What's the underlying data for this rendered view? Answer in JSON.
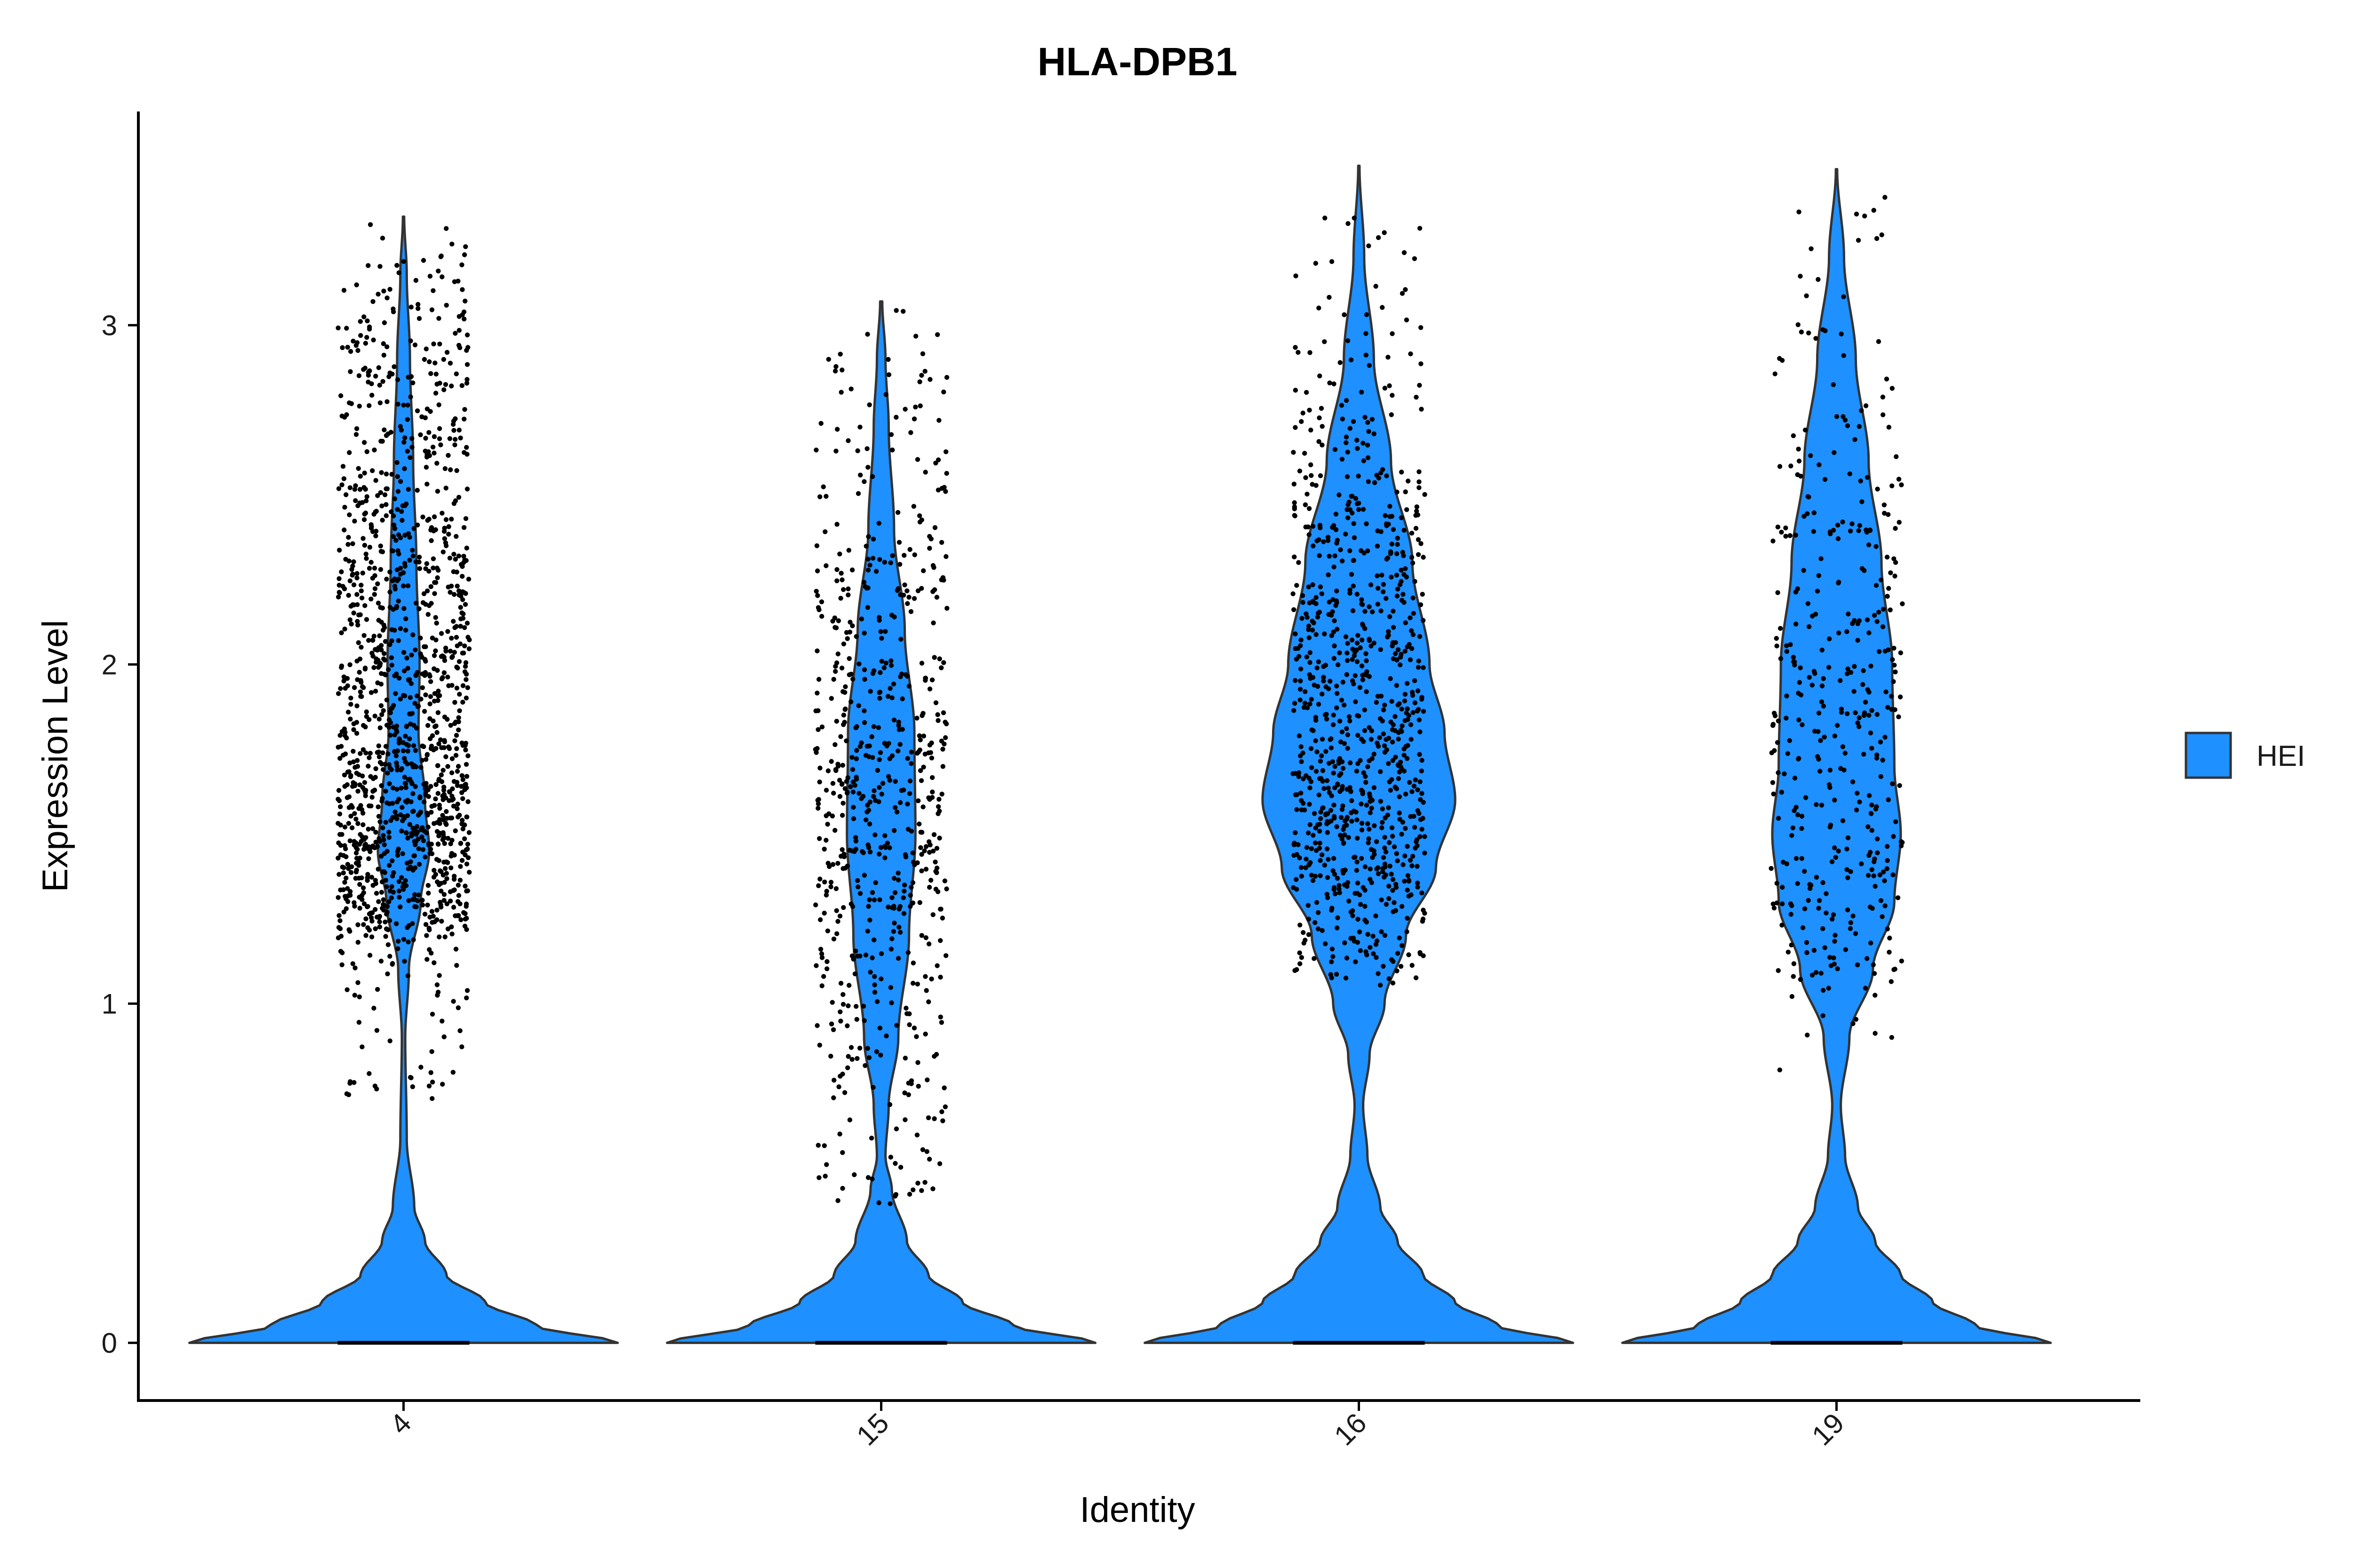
{
  "chart_data": {
    "type": "violin",
    "title": "HLA-DPB1",
    "xlabel": "Identity",
    "ylabel": "Expression Level",
    "categories": [
      "4",
      "15",
      "16",
      "19"
    ],
    "ylim": [
      -0.17,
      3.63
    ],
    "yticks": [
      "0",
      "1",
      "2",
      "3"
    ],
    "ytick_values": [
      0,
      1,
      2,
      3
    ],
    "x_tick_rotation": -45,
    "legend": {
      "position": "right",
      "entries": [
        {
          "name": "HEI",
          "color": "#1E90FF"
        }
      ]
    },
    "fill_color": "#1E90FF",
    "outline_color": "#333333",
    "point_color": "#000000",
    "grid": false,
    "series": [
      {
        "category": "4",
        "max": 3.32,
        "nonzero_min": 0.72,
        "point_count": 1400,
        "zero_fraction_visual": "large",
        "density_profile": [
          [
            0,
            1.0
          ],
          [
            0.05,
            0.62
          ],
          [
            0.12,
            0.38
          ],
          [
            0.2,
            0.2
          ],
          [
            0.3,
            0.1
          ],
          [
            0.4,
            0.05
          ],
          [
            0.6,
            0.015
          ],
          [
            0.9,
            0.008
          ],
          [
            1.1,
            0.025
          ],
          [
            1.3,
            0.08
          ],
          [
            1.45,
            0.12
          ],
          [
            1.6,
            0.1
          ],
          [
            1.8,
            0.07
          ],
          [
            2.0,
            0.075
          ],
          [
            2.3,
            0.06
          ],
          [
            2.6,
            0.045
          ],
          [
            2.9,
            0.03
          ],
          [
            3.15,
            0.015
          ],
          [
            3.32,
            0.003
          ]
        ]
      },
      {
        "category": "15",
        "max": 3.07,
        "nonzero_min": 0.41,
        "point_count": 650,
        "zero_fraction_visual": "large",
        "density_profile": [
          [
            0,
            1.0
          ],
          [
            0.05,
            0.62
          ],
          [
            0.12,
            0.38
          ],
          [
            0.2,
            0.22
          ],
          [
            0.3,
            0.12
          ],
          [
            0.45,
            0.05
          ],
          [
            0.55,
            0.02
          ],
          [
            0.7,
            0.035
          ],
          [
            0.9,
            0.08
          ],
          [
            1.2,
            0.13
          ],
          [
            1.5,
            0.16
          ],
          [
            1.8,
            0.155
          ],
          [
            2.1,
            0.11
          ],
          [
            2.4,
            0.06
          ],
          [
            2.7,
            0.035
          ],
          [
            2.9,
            0.02
          ],
          [
            3.07,
            0.005
          ]
        ]
      },
      {
        "category": "16",
        "max": 3.47,
        "nonzero_min": 1.05,
        "point_count": 900,
        "zero_fraction_visual": "large",
        "density_profile": [
          [
            0,
            1.0
          ],
          [
            0.05,
            0.65
          ],
          [
            0.12,
            0.45
          ],
          [
            0.2,
            0.3
          ],
          [
            0.3,
            0.18
          ],
          [
            0.4,
            0.1
          ],
          [
            0.55,
            0.04
          ],
          [
            0.7,
            0.02
          ],
          [
            0.85,
            0.05
          ],
          [
            1.0,
            0.12
          ],
          [
            1.2,
            0.22
          ],
          [
            1.4,
            0.36
          ],
          [
            1.6,
            0.45
          ],
          [
            1.8,
            0.4
          ],
          [
            2.0,
            0.33
          ],
          [
            2.3,
            0.25
          ],
          [
            2.6,
            0.15
          ],
          [
            2.9,
            0.07
          ],
          [
            3.2,
            0.025
          ],
          [
            3.47,
            0.003
          ]
        ]
      },
      {
        "category": "19",
        "max": 3.46,
        "nonzero_min": 0.79,
        "point_count": 400,
        "zero_fraction_visual": "large",
        "density_profile": [
          [
            0,
            1.0
          ],
          [
            0.05,
            0.65
          ],
          [
            0.12,
            0.45
          ],
          [
            0.2,
            0.3
          ],
          [
            0.3,
            0.18
          ],
          [
            0.4,
            0.1
          ],
          [
            0.55,
            0.04
          ],
          [
            0.7,
            0.02
          ],
          [
            0.9,
            0.06
          ],
          [
            1.1,
            0.17
          ],
          [
            1.3,
            0.27
          ],
          [
            1.5,
            0.3
          ],
          [
            1.7,
            0.27
          ],
          [
            2.0,
            0.26
          ],
          [
            2.3,
            0.21
          ],
          [
            2.6,
            0.15
          ],
          [
            2.9,
            0.09
          ],
          [
            3.2,
            0.035
          ],
          [
            3.46,
            0.003
          ]
        ]
      }
    ]
  }
}
